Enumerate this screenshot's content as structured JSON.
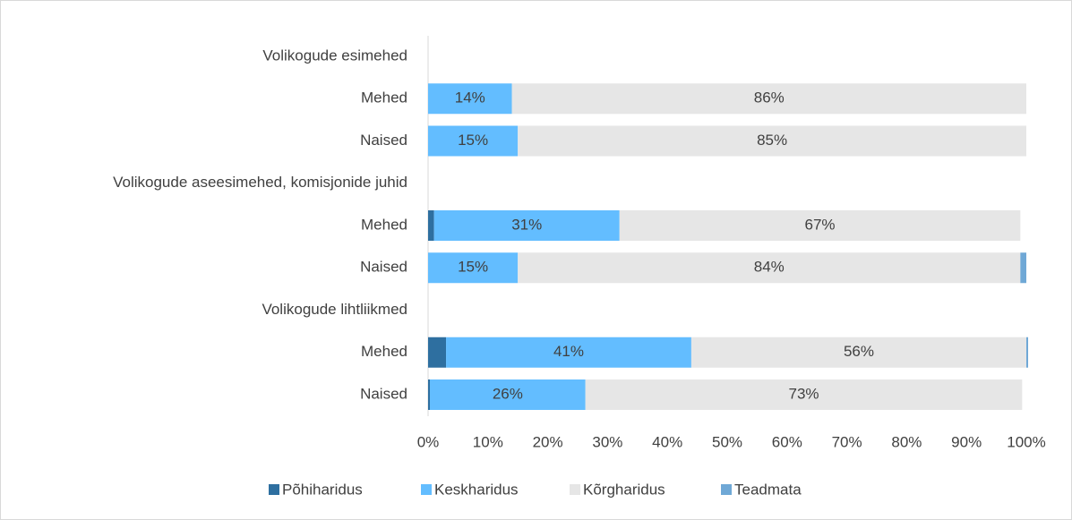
{
  "chart_data": {
    "type": "stacked_barh",
    "categories": [
      "Volikogude esimehed",
      "Mehed",
      "Naised",
      "Volikogude aseesimehed, komisjonide juhid",
      "Mehed",
      "Naised",
      "Volikogude lihtliikmed",
      "Mehed",
      "Naised"
    ],
    "series": [
      {
        "name": "Põhiharidus",
        "color": "#2e6fa0",
        "values": [
          null,
          0,
          0,
          null,
          1,
          0,
          null,
          3,
          0.3
        ]
      },
      {
        "name": "Keskharidus",
        "color": "#63bdff",
        "values": [
          null,
          14,
          15,
          null,
          31,
          15,
          null,
          41,
          26
        ],
        "value_labels": [
          null,
          "14%",
          "15%",
          null,
          "31%",
          "15%",
          null,
          "41%",
          "26%"
        ]
      },
      {
        "name": "Kõrgharidus",
        "color": "#e6e6e6",
        "values": [
          null,
          86,
          85,
          null,
          67,
          84,
          null,
          56,
          73
        ],
        "value_labels": [
          null,
          "86%",
          "85%",
          null,
          "67%",
          "84%",
          null,
          "56%",
          "73%"
        ]
      },
      {
        "name": "Teadmata",
        "color": "#6fa8d6",
        "values": [
          null,
          0,
          0,
          null,
          0,
          1,
          null,
          0.3,
          0
        ]
      }
    ],
    "xlim": [
      0,
      100
    ],
    "xticks": [
      {
        "value": 0,
        "label": "0%"
      },
      {
        "value": 10,
        "label": "10%"
      },
      {
        "value": 20,
        "label": "20%"
      },
      {
        "value": 30,
        "label": "30%"
      },
      {
        "value": 40,
        "label": "40%"
      },
      {
        "value": 50,
        "label": "50%"
      },
      {
        "value": 60,
        "label": "60%"
      },
      {
        "value": 70,
        "label": "70%"
      },
      {
        "value": 80,
        "label": "80%"
      },
      {
        "value": 90,
        "label": "90%"
      },
      {
        "value": 100,
        "label": "100%"
      }
    ],
    "legend": "bottom"
  }
}
